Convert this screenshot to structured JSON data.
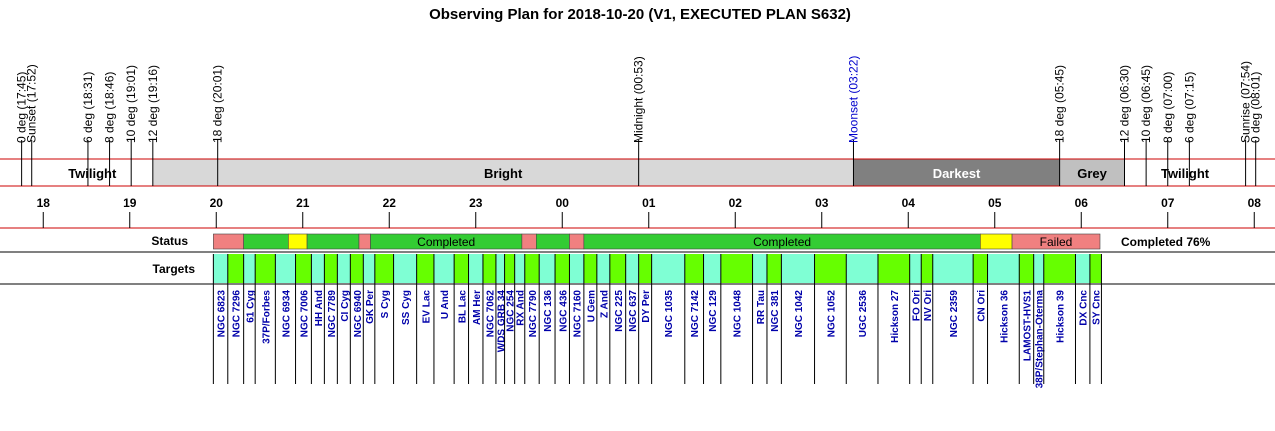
{
  "chart_data": {
    "type": "observing-plan-timeline",
    "title": "Observing Plan for 2018-10-20 (V1, EXECUTED PLAN S632)",
    "time_axis": {
      "start": "17:30",
      "end": "08:10",
      "hour_labels": [
        "18",
        "19",
        "20",
        "21",
        "22",
        "23",
        "00",
        "01",
        "02",
        "03",
        "04",
        "05",
        "06",
        "07",
        "08"
      ]
    },
    "events": [
      {
        "label": "0 deg (17:45)",
        "time": "17:45",
        "color": "#000000"
      },
      {
        "label": "Sunset (17:52)",
        "time": "17:52",
        "color": "#000000"
      },
      {
        "label": "6 deg (18:31)",
        "time": "18:31",
        "color": "#000000"
      },
      {
        "label": "8 deg (18:46)",
        "time": "18:46",
        "color": "#000000"
      },
      {
        "label": "10 deg (19:01)",
        "time": "19:01",
        "color": "#000000"
      },
      {
        "label": "12 deg (19:16)",
        "time": "19:16",
        "color": "#000000"
      },
      {
        "label": "18 deg (20:01)",
        "time": "20:01",
        "color": "#000000"
      },
      {
        "label": "Midnight (00:53)",
        "time": "00:53",
        "color": "#000000"
      },
      {
        "label": "Moonset (03:22)",
        "time": "03:22",
        "color": "#0000cc"
      },
      {
        "label": "18 deg (05:45)",
        "time": "05:45",
        "color": "#000000"
      },
      {
        "label": "12 deg (06:30)",
        "time": "06:30",
        "color": "#000000"
      },
      {
        "label": "10 deg (06:45)",
        "time": "06:45",
        "color": "#000000"
      },
      {
        "label": "8 deg (07:00)",
        "time": "07:00",
        "color": "#000000"
      },
      {
        "label": "6 deg (07:15)",
        "time": "07:15",
        "color": "#000000"
      },
      {
        "label": "Sunrise (07:54)",
        "time": "07:54",
        "color": "#000000"
      },
      {
        "label": "0 deg (08:01)",
        "time": "08:01",
        "color": "#000000"
      }
    ],
    "periods": [
      {
        "label": "",
        "start": "17:30",
        "end": "17:52",
        "fill": "#ffffff"
      },
      {
        "label": "Twilight",
        "start": "17:52",
        "end": "19:16",
        "fill": "#ffffff"
      },
      {
        "label": "Bright",
        "start": "19:16",
        "end": "03:22",
        "fill": "#d8d8d8"
      },
      {
        "label": "Darkest",
        "start": "03:22",
        "end": "05:45",
        "fill": "#808080",
        "text_color": "#ffffff"
      },
      {
        "label": "Grey",
        "start": "05:45",
        "end": "06:30",
        "fill": "#c0c0c0"
      },
      {
        "label": "Twilight",
        "start": "06:30",
        "end": "07:54",
        "fill": "#ffffff"
      },
      {
        "label": "",
        "start": "07:54",
        "end": "08:10",
        "fill": "#ffffff"
      }
    ],
    "status_row": {
      "label": "Status",
      "summary": "Completed 76%",
      "segments": [
        {
          "start": "19:58",
          "end": "20:19",
          "state": "failed",
          "text": ""
        },
        {
          "start": "20:19",
          "end": "20:50",
          "state": "completed",
          "text": ""
        },
        {
          "start": "20:50",
          "end": "21:03",
          "state": "partial",
          "text": ""
        },
        {
          "start": "21:03",
          "end": "21:39",
          "state": "completed",
          "text": ""
        },
        {
          "start": "21:39",
          "end": "21:47",
          "state": "failed",
          "text": ""
        },
        {
          "start": "21:47",
          "end": "23:32",
          "state": "completed",
          "text": "Completed"
        },
        {
          "start": "23:32",
          "end": "23:42",
          "state": "failed",
          "text": ""
        },
        {
          "start": "23:42",
          "end": "00:05",
          "state": "completed",
          "text": ""
        },
        {
          "start": "00:05",
          "end": "00:15",
          "state": "failed",
          "text": ""
        },
        {
          "start": "00:15",
          "end": "04:50",
          "state": "completed",
          "text": "Completed"
        },
        {
          "start": "04:50",
          "end": "05:12",
          "state": "partial",
          "text": ""
        },
        {
          "start": "05:12",
          "end": "06:13",
          "state": "failed",
          "text": "Failed"
        }
      ],
      "state_colors": {
        "completed": "#33cc33",
        "failed": "#f08080",
        "partial": "#ffff00"
      }
    },
    "targets_row": {
      "label": "Targets",
      "colors": {
        "aqua": "#7fffd4",
        "green": "#66ff00"
      },
      "items": [
        {
          "name": "NGC 6823",
          "start": "19:58",
          "end": "20:08",
          "fill": "aqua"
        },
        {
          "name": "NGC 7296",
          "start": "20:08",
          "end": "20:19",
          "fill": "green"
        },
        {
          "name": "61 Cyg",
          "start": "20:19",
          "end": "20:27",
          "fill": "aqua"
        },
        {
          "name": "37P/Forbes",
          "start": "20:27",
          "end": "20:41",
          "fill": "green"
        },
        {
          "name": "NGC 6934",
          "start": "20:41",
          "end": "20:55",
          "fill": "aqua"
        },
        {
          "name": "NGC 7006",
          "start": "20:55",
          "end": "21:06",
          "fill": "green"
        },
        {
          "name": "HH And",
          "start": "21:06",
          "end": "21:15",
          "fill": "aqua"
        },
        {
          "name": "NGC 7789",
          "start": "21:15",
          "end": "21:24",
          "fill": "green"
        },
        {
          "name": "CI Cyg",
          "start": "21:24",
          "end": "21:33",
          "fill": "aqua"
        },
        {
          "name": "NGC 6940",
          "start": "21:33",
          "end": "21:42",
          "fill": "green"
        },
        {
          "name": "GK Per",
          "start": "21:42",
          "end": "21:50",
          "fill": "aqua"
        },
        {
          "name": "S Cyg",
          "start": "21:50",
          "end": "22:03",
          "fill": "green"
        },
        {
          "name": "SS Cyg",
          "start": "22:03",
          "end": "22:19",
          "fill": "aqua"
        },
        {
          "name": "EV Lac",
          "start": "22:19",
          "end": "22:31",
          "fill": "green"
        },
        {
          "name": "U And",
          "start": "22:31",
          "end": "22:45",
          "fill": "aqua"
        },
        {
          "name": "BL Lac",
          "start": "22:45",
          "end": "22:55",
          "fill": "green"
        },
        {
          "name": "AM Her",
          "start": "22:55",
          "end": "23:05",
          "fill": "aqua"
        },
        {
          "name": "NGC 7062",
          "start": "23:05",
          "end": "23:14",
          "fill": "green"
        },
        {
          "name": "WDS GRB 34",
          "start": "23:14",
          "end": "23:20",
          "fill": "aqua"
        },
        {
          "name": "NGC 254",
          "start": "23:20",
          "end": "23:27",
          "fill": "green"
        },
        {
          "name": "RX And",
          "start": "23:27",
          "end": "23:34",
          "fill": "aqua"
        },
        {
          "name": "NGC 7790",
          "start": "23:34",
          "end": "23:44",
          "fill": "green"
        },
        {
          "name": "NGC 136",
          "start": "23:44",
          "end": "23:55",
          "fill": "aqua"
        },
        {
          "name": "NGC 436",
          "start": "23:55",
          "end": "00:05",
          "fill": "green"
        },
        {
          "name": "NGC 7160",
          "start": "00:05",
          "end": "00:15",
          "fill": "aqua"
        },
        {
          "name": "U Gem",
          "start": "00:15",
          "end": "00:24",
          "fill": "green"
        },
        {
          "name": "Z And",
          "start": "00:24",
          "end": "00:33",
          "fill": "aqua"
        },
        {
          "name": "NGC 225",
          "start": "00:33",
          "end": "00:44",
          "fill": "green"
        },
        {
          "name": "NGC 637",
          "start": "00:44",
          "end": "00:53",
          "fill": "aqua"
        },
        {
          "name": "DY Per",
          "start": "00:53",
          "end": "01:02",
          "fill": "green"
        },
        {
          "name": "NGC 1035",
          "start": "01:02",
          "end": "01:25",
          "fill": "aqua"
        },
        {
          "name": "NGC 7142",
          "start": "01:25",
          "end": "01:38",
          "fill": "green"
        },
        {
          "name": "NGC 129",
          "start": "01:38",
          "end": "01:50",
          "fill": "aqua"
        },
        {
          "name": "NGC 1048",
          "start": "01:50",
          "end": "02:12",
          "fill": "green"
        },
        {
          "name": "RR Tau",
          "start": "02:12",
          "end": "02:22",
          "fill": "aqua"
        },
        {
          "name": "NGC 381",
          "start": "02:22",
          "end": "02:32",
          "fill": "green"
        },
        {
          "name": "NGC 1042",
          "start": "02:32",
          "end": "02:55",
          "fill": "aqua"
        },
        {
          "name": "NGC 1052",
          "start": "02:55",
          "end": "03:17",
          "fill": "green"
        },
        {
          "name": "UGC 2536",
          "start": "03:17",
          "end": "03:39",
          "fill": "aqua"
        },
        {
          "name": "Hickson 27",
          "start": "03:39",
          "end": "04:01",
          "fill": "green"
        },
        {
          "name": "FO Ori",
          "start": "04:01",
          "end": "04:09",
          "fill": "aqua"
        },
        {
          "name": "NV Ori",
          "start": "04:09",
          "end": "04:17",
          "fill": "green"
        },
        {
          "name": "NGC 2359",
          "start": "04:17",
          "end": "04:45",
          "fill": "aqua"
        },
        {
          "name": "CN Ori",
          "start": "04:45",
          "end": "04:55",
          "fill": "green"
        },
        {
          "name": "Hickson 36",
          "start": "04:55",
          "end": "05:17",
          "fill": "aqua"
        },
        {
          "name": "LAMOST-HVS1",
          "start": "05:17",
          "end": "05:27",
          "fill": "green"
        },
        {
          "name": "38P/Stephan-Oterma",
          "start": "05:27",
          "end": "05:34",
          "fill": "aqua"
        },
        {
          "name": "Hickson 39",
          "start": "05:34",
          "end": "05:56",
          "fill": "green"
        },
        {
          "name": "DX Cnc",
          "start": "05:56",
          "end": "06:06",
          "fill": "aqua"
        },
        {
          "name": "SY Cnc",
          "start": "06:06",
          "end": "06:14",
          "fill": "green"
        }
      ]
    }
  }
}
